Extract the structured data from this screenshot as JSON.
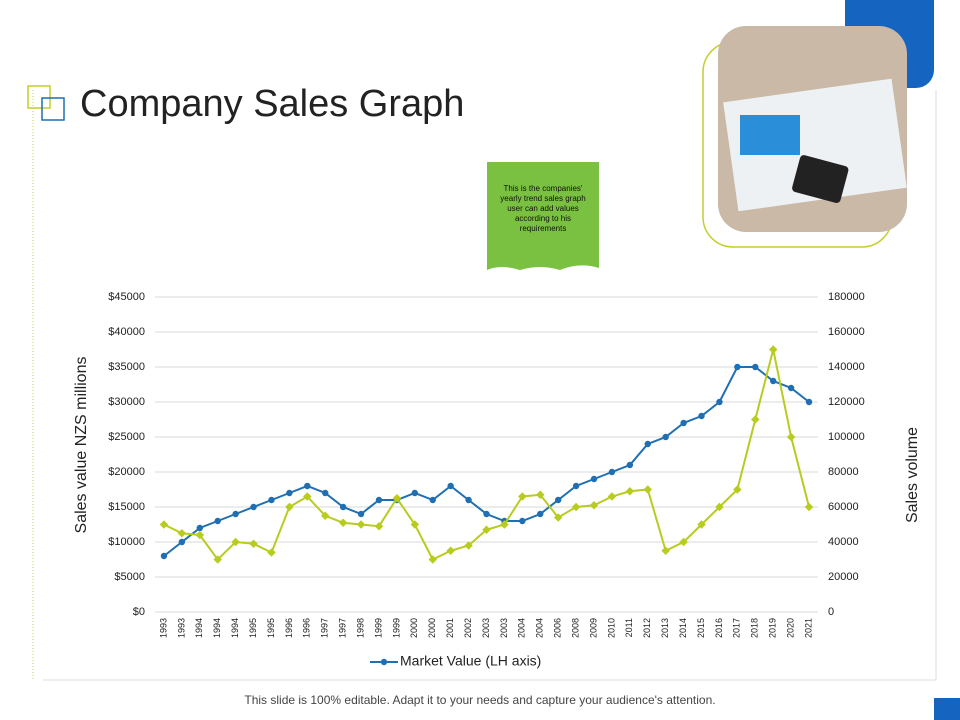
{
  "title": "Company Sales Graph",
  "note": "This is the companies' yearly trend sales graph user can add values according to his requirements",
  "footer": "This slide is 100% editable. Adapt it to your needs and capture your audience's attention.",
  "chart_data": {
    "type": "line",
    "ylabel": "Sales value NZS millions",
    "y2label": "Sales  volume",
    "categories": [
      "1993",
      "1993",
      "1994",
      "1994",
      "1994",
      "1995",
      "1995",
      "1996",
      "1996",
      "1997",
      "1997",
      "1998",
      "1999",
      "1999",
      "2000",
      "2000",
      "2001",
      "2002",
      "2003",
      "2003",
      "2004",
      "2004",
      "2006",
      "2008",
      "2009",
      "2010",
      "2011",
      "2012",
      "2013",
      "2014",
      "2015",
      "2016",
      "2017",
      "2018",
      "2019",
      "2020",
      "2021"
    ],
    "series": [
      {
        "name": "Market Value (LH axis)",
        "color": "#1f6fb2",
        "axis": "y",
        "values": [
          8000,
          10000,
          12000,
          13000,
          14000,
          15000,
          16000,
          17000,
          18000,
          17000,
          15000,
          14000,
          16000,
          16000,
          17000,
          16000,
          18000,
          16000,
          14000,
          13000,
          13000,
          14000,
          16000,
          18000,
          19000,
          20000,
          21000,
          24000,
          25000,
          27000,
          28000,
          30000,
          35000,
          35000,
          33000,
          32000,
          30000
        ]
      },
      {
        "color": "#b8cc1f",
        "axis": "y2",
        "values": [
          50000,
          45000,
          44000,
          30000,
          40000,
          39000,
          34000,
          60000,
          66000,
          55000,
          51000,
          50000,
          49000,
          65000,
          50000,
          30000,
          35000,
          38000,
          47000,
          50000,
          66000,
          67000,
          54000,
          60000,
          61000,
          66000,
          69000,
          70000,
          35000,
          40000,
          50000,
          60000,
          70000,
          110000,
          150000,
          100000,
          60000
        ]
      }
    ],
    "ylim": [
      0,
      45000
    ],
    "yticks": [
      {
        "value": 0,
        "label": "$0"
      },
      {
        "value": 5000,
        "label": "$5000"
      },
      {
        "value": 10000,
        "label": "$10000"
      },
      {
        "value": 15000,
        "label": "$15000"
      },
      {
        "value": 20000,
        "label": "$20000"
      },
      {
        "value": 25000,
        "label": "$25000"
      },
      {
        "value": 30000,
        "label": "$30000"
      },
      {
        "value": 35000,
        "label": "$35000"
      },
      {
        "value": 40000,
        "label": "$40000"
      },
      {
        "value": 45000,
        "label": "$45000"
      }
    ],
    "y2lim": [
      0,
      180000
    ],
    "y2ticks": [
      0,
      20000,
      40000,
      60000,
      80000,
      100000,
      120000,
      140000,
      160000,
      180000
    ],
    "grid": true,
    "legend": "bottom"
  }
}
